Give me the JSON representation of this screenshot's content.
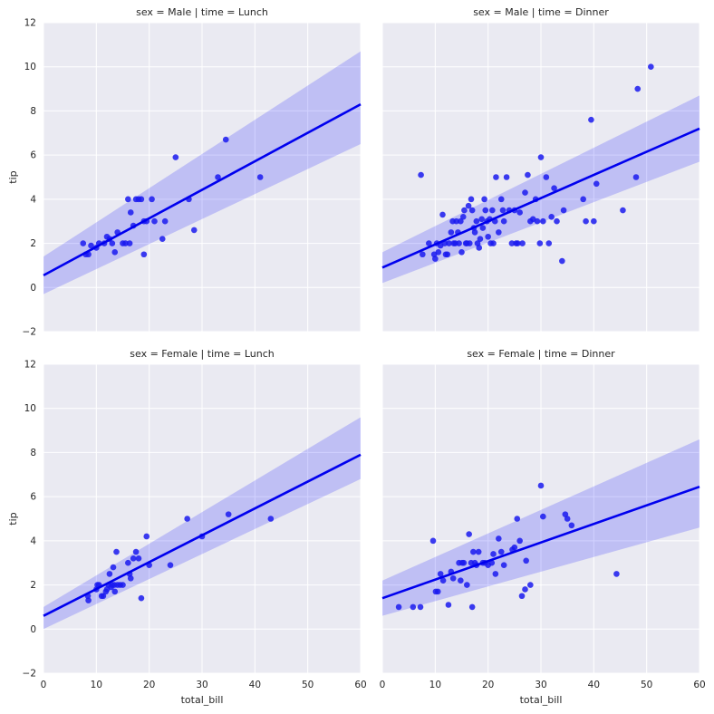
{
  "chart_data": [
    {
      "type": "scatter",
      "title": "sex = Male | time = Lunch",
      "xlabel": "",
      "ylabel": "tip",
      "xlim": [
        0,
        60
      ],
      "ylim": [
        -2,
        12
      ],
      "xticks": [
        "0",
        "10",
        "20",
        "30",
        "40",
        "50",
        "60"
      ],
      "yticks": [
        "−2",
        "0",
        "2",
        "4",
        "6",
        "8",
        "10",
        "12"
      ],
      "grid": true,
      "points": {
        "x": [
          7.5,
          8.0,
          8.5,
          9.0,
          10.0,
          10.5,
          11.5,
          12.0,
          12.5,
          13.0,
          13.5,
          14.0,
          15.0,
          15.5,
          16.0,
          16.3,
          16.5,
          17.0,
          17.5,
          18.0,
          18.5,
          19.0,
          19.0,
          19.5,
          20.5,
          21.0,
          22.5,
          23.0,
          25.0,
          27.5,
          28.5,
          33.0,
          34.5,
          41.0
        ],
        "y": [
          2.0,
          1.5,
          1.5,
          1.9,
          1.8,
          2.0,
          2.0,
          2.3,
          2.2,
          2.0,
          1.6,
          2.5,
          2.0,
          2.0,
          4.0,
          2.0,
          3.4,
          2.8,
          4.0,
          4.0,
          4.0,
          3.0,
          1.5,
          3.0,
          4.0,
          3.0,
          2.2,
          3.0,
          5.9,
          4.0,
          2.6,
          5.0,
          6.7,
          5.0
        ]
      },
      "regression": {
        "x": [
          0,
          60
        ],
        "y": [
          0.55,
          8.3
        ],
        "ci_lower": [
          -0.3,
          6.5
        ],
        "ci_upper": [
          1.4,
          10.7
        ]
      }
    },
    {
      "type": "scatter",
      "title": "sex = Male | time = Dinner",
      "xlabel": "",
      "ylabel": "",
      "xlim": [
        0,
        60
      ],
      "ylim": [
        -2,
        12
      ],
      "xticks": [
        "0",
        "10",
        "20",
        "30",
        "40",
        "50",
        "60"
      ],
      "yticks": [
        "−2",
        "0",
        "2",
        "4",
        "6",
        "8",
        "10",
        "12"
      ],
      "grid": true,
      "points": {
        "x": [
          7.3,
          7.6,
          8.8,
          9.8,
          10.0,
          10.3,
          10.6,
          11.0,
          11.4,
          11.8,
          12.0,
          12.3,
          12.6,
          13.0,
          13.3,
          13.5,
          13.8,
          14.0,
          14.3,
          14.5,
          14.8,
          15.0,
          15.3,
          15.5,
          15.8,
          16.0,
          16.3,
          16.5,
          16.8,
          17.0,
          17.3,
          17.5,
          17.8,
          18.0,
          18.3,
          18.5,
          18.8,
          19.0,
          19.3,
          19.5,
          19.8,
          20.0,
          20.3,
          20.5,
          20.8,
          21.0,
          21.3,
          21.5,
          22.0,
          22.5,
          22.8,
          23.0,
          23.5,
          24.0,
          24.5,
          25.0,
          25.3,
          25.6,
          26.0,
          26.5,
          27.0,
          27.5,
          28.0,
          28.5,
          29.0,
          29.3,
          29.8,
          30.0,
          30.4,
          31.0,
          31.5,
          32.0,
          32.5,
          33.0,
          34.0,
          34.3,
          38.0,
          38.5,
          39.5,
          40.0,
          40.5,
          45.5,
          48.0,
          48.3,
          50.8
        ],
        "y": [
          5.1,
          1.5,
          2.0,
          1.5,
          1.3,
          2.0,
          1.6,
          1.9,
          3.3,
          2.0,
          1.5,
          1.5,
          2.0,
          2.5,
          3.0,
          2.0,
          2.0,
          3.0,
          2.5,
          2.0,
          3.0,
          1.6,
          3.2,
          3.5,
          2.0,
          2.0,
          3.7,
          2.0,
          4.0,
          3.5,
          2.7,
          2.5,
          3.0,
          2.0,
          1.8,
          2.2,
          3.1,
          2.7,
          4.0,
          3.5,
          3.0,
          2.3,
          3.1,
          2.0,
          3.5,
          2.0,
          3.0,
          5.0,
          2.5,
          4.0,
          3.5,
          3.0,
          5.0,
          3.5,
          2.0,
          3.5,
          2.0,
          2.0,
          3.4,
          2.0,
          4.3,
          5.1,
          3.0,
          3.1,
          4.0,
          3.0,
          2.0,
          5.9,
          3.0,
          5.0,
          2.0,
          3.2,
          4.5,
          3.0,
          1.2,
          3.5,
          4.0,
          3.0,
          7.6,
          3.0,
          4.7,
          3.5,
          5.0,
          9.0,
          10.0
        ],
        "extra": []
      },
      "regression": {
        "x": [
          0,
          60
        ],
        "y": [
          0.9,
          7.2
        ],
        "ci_lower": [
          0.2,
          5.7
        ],
        "ci_upper": [
          1.6,
          8.7
        ]
      }
    },
    {
      "type": "scatter",
      "title": "sex = Female | time = Lunch",
      "xlabel": "total_bill",
      "ylabel": "tip",
      "xlim": [
        0,
        60
      ],
      "ylim": [
        -2,
        12
      ],
      "xticks": [
        "0",
        "10",
        "20",
        "30",
        "40",
        "50",
        "60"
      ],
      "yticks": [
        "−2",
        "0",
        "2",
        "4",
        "6",
        "8",
        "10",
        "12"
      ],
      "grid": true,
      "points": {
        "x": [
          8.4,
          8.5,
          10.0,
          10.2,
          10.5,
          11.0,
          11.3,
          11.8,
          12.0,
          12.3,
          12.5,
          12.8,
          13.0,
          13.2,
          13.4,
          13.5,
          13.8,
          14.0,
          14.5,
          15.0,
          16.0,
          16.3,
          16.5,
          17.0,
          17.5,
          18.0,
          18.5,
          19.5,
          20.0,
          24.0,
          27.2,
          30.0,
          35.0,
          43.0
        ],
        "y": [
          1.5,
          1.3,
          1.8,
          2.0,
          2.0,
          1.5,
          1.5,
          1.7,
          1.8,
          2.0,
          2.5,
          1.9,
          2.0,
          2.8,
          2.0,
          1.7,
          3.5,
          2.0,
          2.0,
          2.0,
          3.0,
          2.5,
          2.3,
          3.2,
          3.5,
          3.2,
          1.4,
          4.2,
          2.9,
          2.9,
          5.0,
          4.2,
          5.2,
          5.0
        ]
      },
      "regression": {
        "x": [
          0,
          60
        ],
        "y": [
          0.6,
          7.9
        ],
        "ci_lower": [
          0.0,
          6.8
        ],
        "ci_upper": [
          1.0,
          9.6
        ]
      }
    },
    {
      "type": "scatter",
      "title": "sex = Female | time = Dinner",
      "xlabel": "total_bill",
      "ylabel": "",
      "xlim": [
        0,
        60
      ],
      "ylim": [
        -2,
        12
      ],
      "xticks": [
        "0",
        "10",
        "20",
        "30",
        "40",
        "50",
        "60"
      ],
      "yticks": [
        "−2",
        "0",
        "2",
        "4",
        "6",
        "8",
        "10",
        "12"
      ],
      "grid": true,
      "points": {
        "x": [
          3.1,
          5.8,
          7.2,
          9.6,
          10.1,
          10.5,
          11.0,
          11.5,
          12.5,
          13.0,
          13.4,
          14.5,
          14.8,
          15.1,
          15.4,
          16.0,
          16.4,
          16.8,
          17.0,
          17.2,
          17.5,
          17.8,
          18.2,
          19.0,
          19.4,
          20.0,
          20.7,
          21.0,
          21.4,
          22.0,
          22.5,
          23.0,
          24.6,
          25.0,
          25.5,
          26.0,
          26.4,
          27.0,
          27.2,
          28.0,
          30.0,
          30.4,
          34.6,
          35.0,
          35.8,
          44.3
        ],
        "y": [
          1.0,
          1.0,
          1.0,
          4.0,
          1.7,
          1.7,
          2.5,
          2.2,
          1.1,
          2.6,
          2.3,
          3.0,
          2.2,
          3.0,
          3.0,
          2.0,
          4.3,
          3.0,
          1.0,
          3.5,
          3.0,
          2.9,
          3.5,
          3.0,
          3.0,
          2.9,
          3.0,
          3.4,
          2.5,
          4.1,
          3.5,
          2.9,
          3.6,
          3.7,
          5.0,
          4.0,
          1.5,
          1.8,
          3.1,
          2.0,
          6.5,
          5.1,
          5.2,
          5.0,
          4.7,
          2.5
        ]
      },
      "regression": {
        "x": [
          0,
          60
        ],
        "y": [
          1.4,
          6.45
        ],
        "ci_lower": [
          0.6,
          4.6
        ],
        "ci_upper": [
          2.2,
          8.6
        ]
      }
    }
  ]
}
